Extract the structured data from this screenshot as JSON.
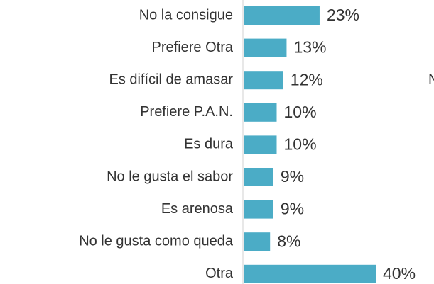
{
  "chart_data": {
    "type": "bar",
    "orientation": "horizontal",
    "categories": [
      "No la consigue",
      "Prefiere Otra",
      "Es difícil de amasar",
      "Prefiere P.A.N.",
      "Es dura",
      "No le gusta el sabor",
      "Es arenosa",
      "No le gusta como queda",
      "Otra"
    ],
    "values": [
      23,
      13,
      12,
      10,
      10,
      9,
      9,
      8,
      40
    ],
    "value_labels": [
      "23%",
      "13%",
      "12%",
      "10%",
      "10%",
      "9%",
      "9%",
      "8%",
      "40%"
    ],
    "color": "#4bacc6",
    "annotation": "N"
  }
}
